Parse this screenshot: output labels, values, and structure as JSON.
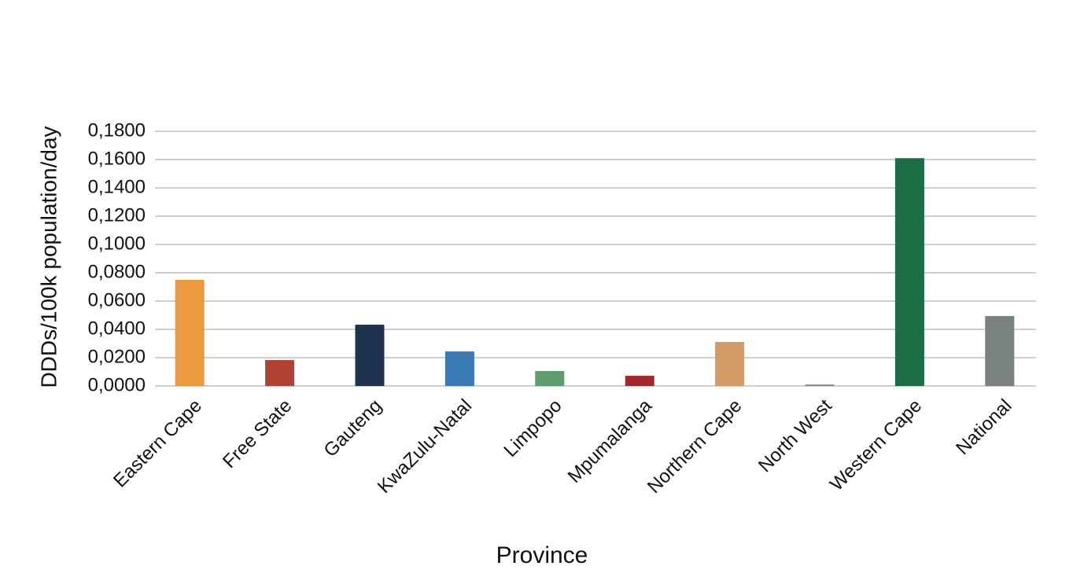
{
  "chart_data": {
    "type": "bar",
    "x_label": "Province",
    "y_label": "DDDs/100k population/day",
    "categories": [
      "Eastern Cape",
      "Free State",
      "Gauteng",
      "KwaZulu-Natal",
      "Limpopo",
      "Mpumalanga",
      "Northern Cape",
      "North West",
      "Western Cape",
      "National"
    ],
    "values": [
      0.075,
      0.0183,
      0.0433,
      0.0244,
      0.0106,
      0.0072,
      0.0311,
      0.001,
      0.161,
      0.0494
    ],
    "colors": [
      "#ec9a3f",
      "#b04235",
      "#1f3250",
      "#3a7ab5",
      "#5e9c6e",
      "#a5262d",
      "#d69a66",
      "#7d8788",
      "#1c6c44",
      "#7a827d"
    ],
    "ylim": [
      0,
      0.18
    ],
    "yticks": [
      {
        "value": 0,
        "label": "0,0000"
      },
      {
        "value": 0.02,
        "label": "0,0200"
      },
      {
        "value": 0.04,
        "label": "0,0400"
      },
      {
        "value": 0.06,
        "label": "0,0600"
      },
      {
        "value": 0.08,
        "label": "0,0800"
      },
      {
        "value": 0.1,
        "label": "0,1000"
      },
      {
        "value": 0.12,
        "label": "0,1200"
      },
      {
        "value": 0.14,
        "label": "0,1400"
      },
      {
        "value": 0.16,
        "label": "0,1600"
      },
      {
        "value": 0.18,
        "label": "0,1800"
      }
    ],
    "grid": true
  }
}
